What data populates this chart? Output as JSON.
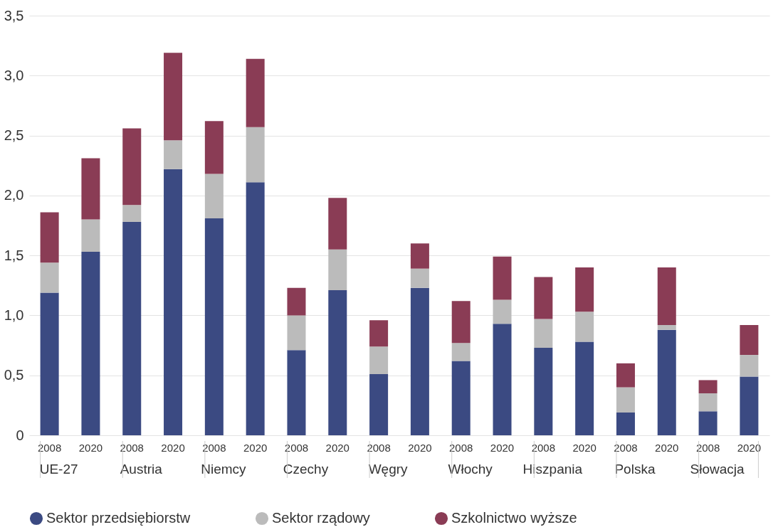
{
  "chart_data": {
    "type": "bar",
    "stacked": true,
    "categories": [
      "2008",
      "2020",
      "2008",
      "2020",
      "2008",
      "2020",
      "2008",
      "2020",
      "2008",
      "2020",
      "2008",
      "2020",
      "2008",
      "2020",
      "2008",
      "2020",
      "2008",
      "2020"
    ],
    "annotations": [
      "UE-27",
      "Austria",
      "Niemcy",
      "Czechy",
      "Węgry",
      "Włochy",
      "Hiszpania",
      "Polska",
      "Słowacja"
    ],
    "series": [
      {
        "name": "Sektor przedsiębiorstw",
        "color": "#3b4a82",
        "values": [
          1.19,
          1.53,
          1.78,
          2.22,
          1.81,
          2.11,
          0.71,
          1.21,
          0.51,
          1.23,
          0.62,
          0.93,
          0.73,
          0.78,
          0.19,
          0.88,
          0.2,
          0.49
        ]
      },
      {
        "name": "Sektor rządowy",
        "color": "#bbbbbb",
        "values": [
          0.25,
          0.27,
          0.14,
          0.24,
          0.37,
          0.46,
          0.29,
          0.34,
          0.23,
          0.16,
          0.15,
          0.2,
          0.24,
          0.25,
          0.21,
          0.04,
          0.15,
          0.18
        ]
      },
      {
        "name": "Szkolnictwo wyższe",
        "color": "#8a3c55",
        "values": [
          0.42,
          0.51,
          0.64,
          0.73,
          0.44,
          0.57,
          0.23,
          0.43,
          0.22,
          0.21,
          0.35,
          0.36,
          0.35,
          0.37,
          0.2,
          0.48,
          0.11,
          0.25
        ]
      }
    ],
    "ylim": [
      0,
      3.5
    ],
    "yticks": [
      0,
      {
        "value": 0.5,
        "label": "0,5"
      },
      {
        "value": 1,
        "label": "1,0"
      },
      {
        "value": 1.5,
        "label": "1,5"
      },
      {
        "value": 2,
        "label": "2,0"
      },
      {
        "value": 2.5,
        "label": "2,5"
      },
      {
        "value": 3,
        "label": "3,0"
      },
      {
        "value": 3.5,
        "label": "3,5"
      }
    ],
    "grid": "y",
    "legend": "bottom"
  }
}
